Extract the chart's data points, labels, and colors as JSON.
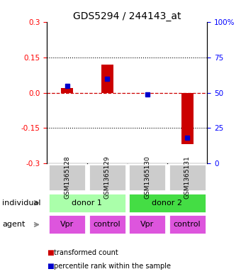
{
  "title": "GDS5294 / 244143_at",
  "samples": [
    "GSM1365128",
    "GSM1365129",
    "GSM1365130",
    "GSM1365131"
  ],
  "bar_values": [
    0.02,
    0.12,
    0.0,
    -0.22
  ],
  "percentile_values": [
    55,
    60,
    49,
    18
  ],
  "ylim_left": [
    -0.3,
    0.3
  ],
  "ylim_right": [
    0,
    100
  ],
  "yticks_left": [
    -0.3,
    -0.15,
    0.0,
    0.15,
    0.3
  ],
  "yticks_right": [
    0,
    25,
    50,
    75,
    100
  ],
  "bar_color": "#cc0000",
  "dot_color": "#0000cc",
  "zero_line_color": "#cc0000",
  "grid_dotted_color": "#000000",
  "individual_labels": [
    "donor 1",
    "donor 2"
  ],
  "individual_colors": [
    "#aaffaa",
    "#44dd44"
  ],
  "agent_labels": [
    "Vpr",
    "control",
    "Vpr",
    "control"
  ],
  "agent_color": "#dd55dd",
  "sample_box_color": "#cccccc",
  "legend_bar_label": "transformed count",
  "legend_dot_label": "percentile rank within the sample",
  "row_label_individual": "individual",
  "row_label_agent": "agent",
  "title_fontsize": 10,
  "tick_fontsize": 7.5,
  "table_fontsize": 8
}
